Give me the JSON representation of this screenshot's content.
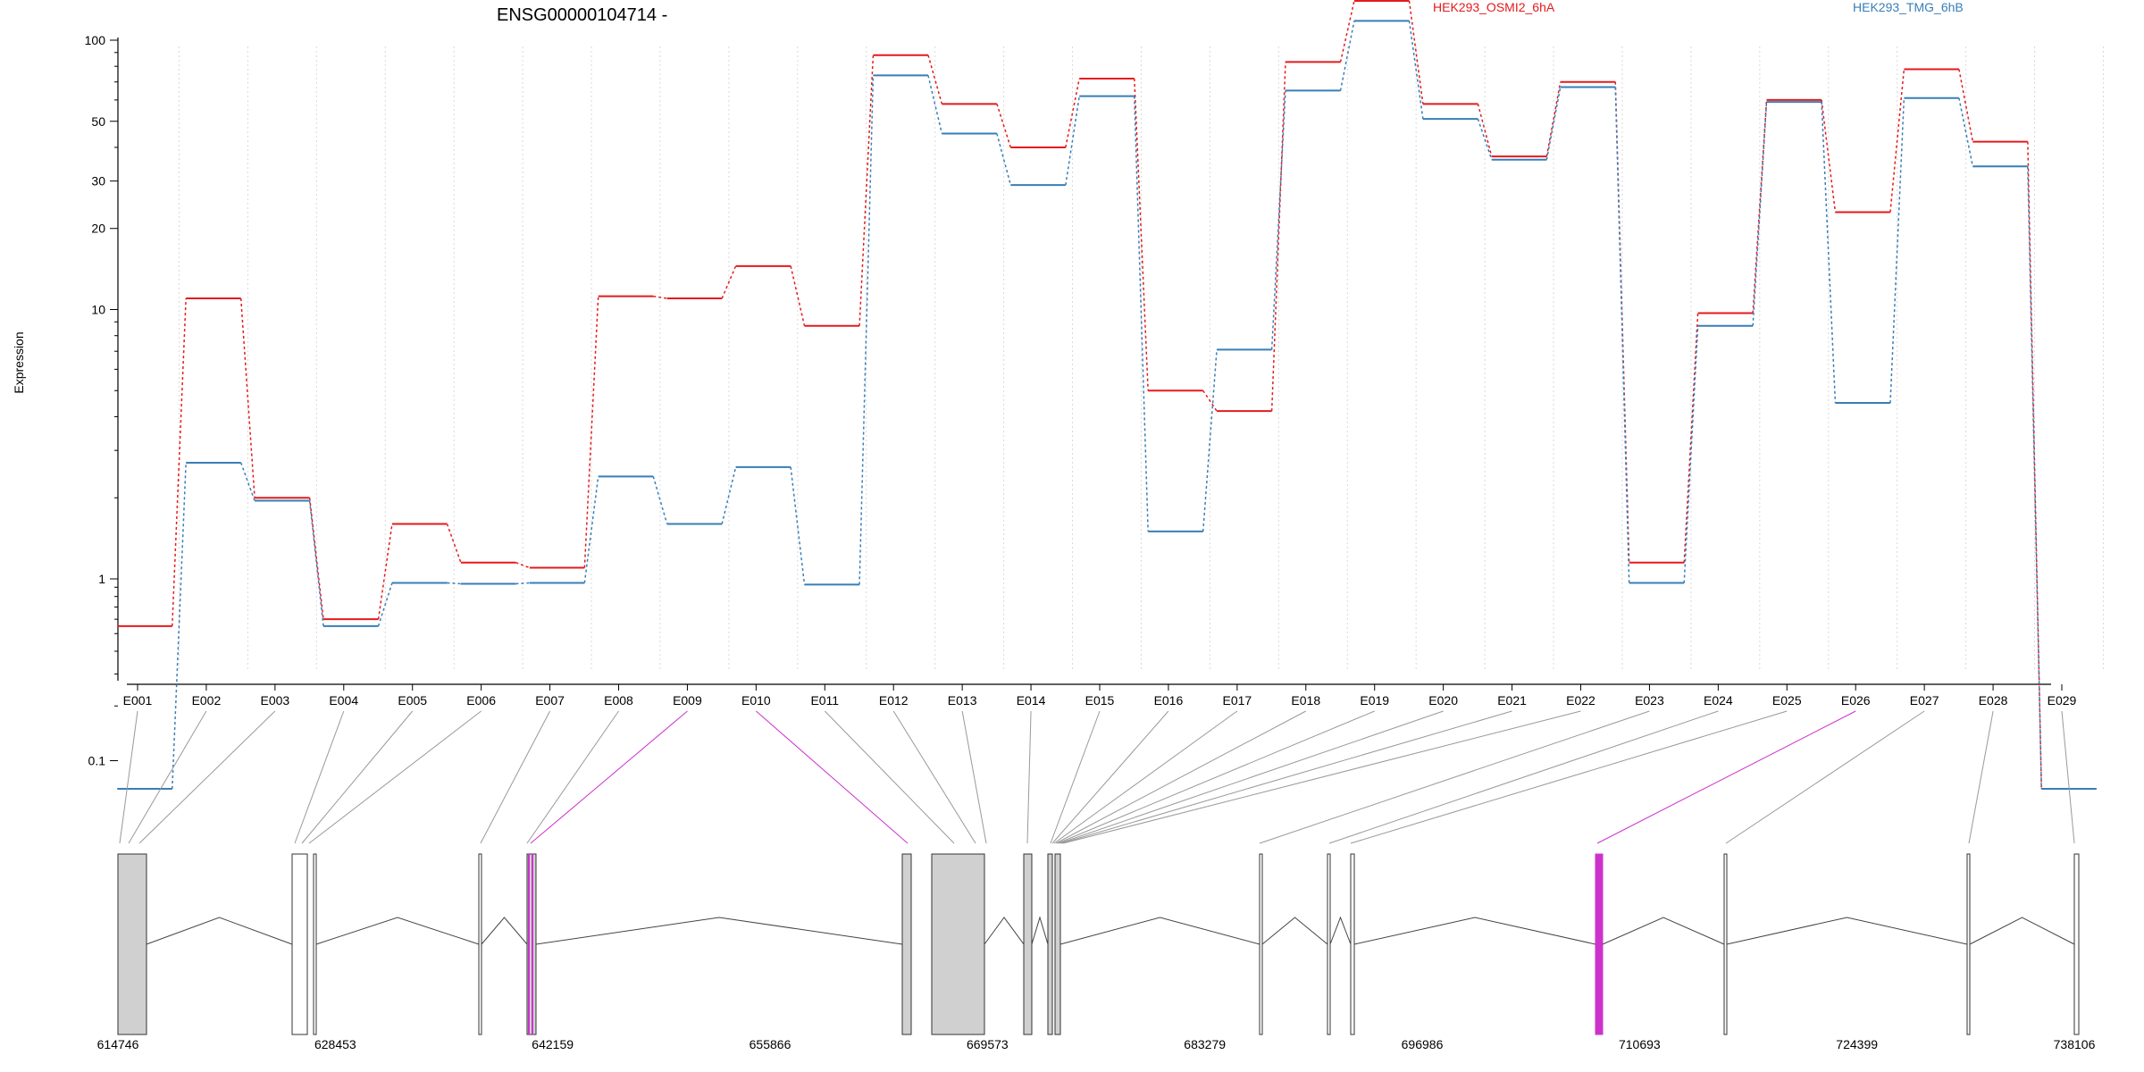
{
  "chart_data": {
    "type": "line",
    "title": "ENSG00000104714 -",
    "ylabel": "Expression",
    "yscale": "log",
    "ylim": [
      0.07,
      190
    ],
    "yticks": [
      "0.1",
      "1",
      "10",
      "20",
      "30",
      "50",
      "100"
    ],
    "grid": "vertical dotted lines at exon boundaries",
    "legend_placement": "top-right",
    "categories": [
      "E001",
      "E002",
      "E003",
      "E004",
      "E005",
      "E006",
      "E007",
      "E008",
      "E009",
      "E010",
      "E011",
      "E012",
      "E013",
      "E014",
      "E015",
      "E016",
      "E017",
      "E018",
      "E019",
      "E020",
      "E021",
      "E022",
      "E023",
      "E024",
      "E025",
      "E026",
      "E027",
      "E028",
      "E029"
    ],
    "series": [
      {
        "name": "HEK293_OSMI2_6hA",
        "color": "#e41a1c",
        "values": [
          0.55,
          11,
          2.0,
          0.6,
          1.6,
          1.15,
          1.1,
          11.2,
          11,
          14.5,
          8.7,
          88,
          58,
          40,
          72,
          5.0,
          4.2,
          83,
          140,
          58,
          37,
          70,
          1.15,
          9.7,
          60,
          23,
          78,
          42,
          0.07
        ]
      },
      {
        "name": "HEK293_TMG_6hB",
        "color": "#377eb8",
        "values": [
          0.07,
          2.7,
          1.95,
          0.55,
          0.95,
          0.94,
          0.95,
          2.4,
          1.6,
          2.6,
          0.93,
          74,
          45,
          29,
          62,
          1.5,
          7.1,
          65,
          118,
          51,
          36,
          67,
          0.95,
          8.7,
          59,
          4.5,
          61,
          34,
          0.07
        ]
      }
    ],
    "gene_model": {
      "genomic_ticks": [
        "614746",
        "628453",
        "642159",
        "655866",
        "669573",
        "683279",
        "696986",
        "710693",
        "724399",
        "738106"
      ],
      "genomic_range": [
        614746,
        738106
      ],
      "highlighted_exons": [
        "E009",
        "E010",
        "E026"
      ],
      "highlight_color": "#cc33cc"
    }
  }
}
